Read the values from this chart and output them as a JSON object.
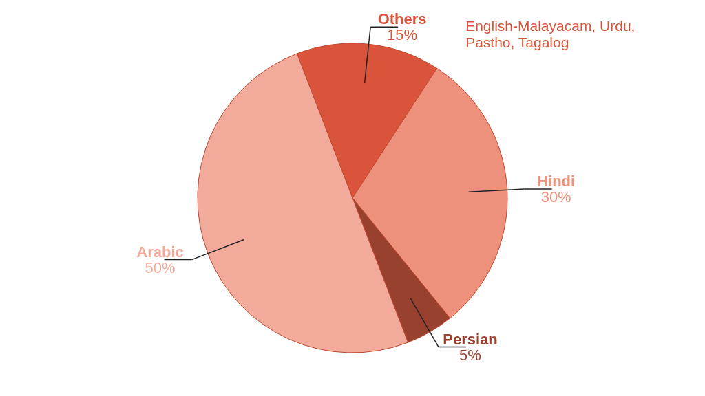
{
  "chart_data": {
    "type": "pie",
    "categories": [
      "Others",
      "Hindi",
      "Persian",
      "Arabic"
    ],
    "values": [
      15,
      30,
      5,
      50
    ],
    "value_labels": [
      "15%",
      "30%",
      "5%",
      "50%"
    ],
    "colors": [
      "#d9543a",
      "#ee917c",
      "#98412e",
      "#f2ab9b"
    ],
    "annotations": [
      "English-Malayacam, Urdu, Pastho, Tagalog"
    ]
  }
}
